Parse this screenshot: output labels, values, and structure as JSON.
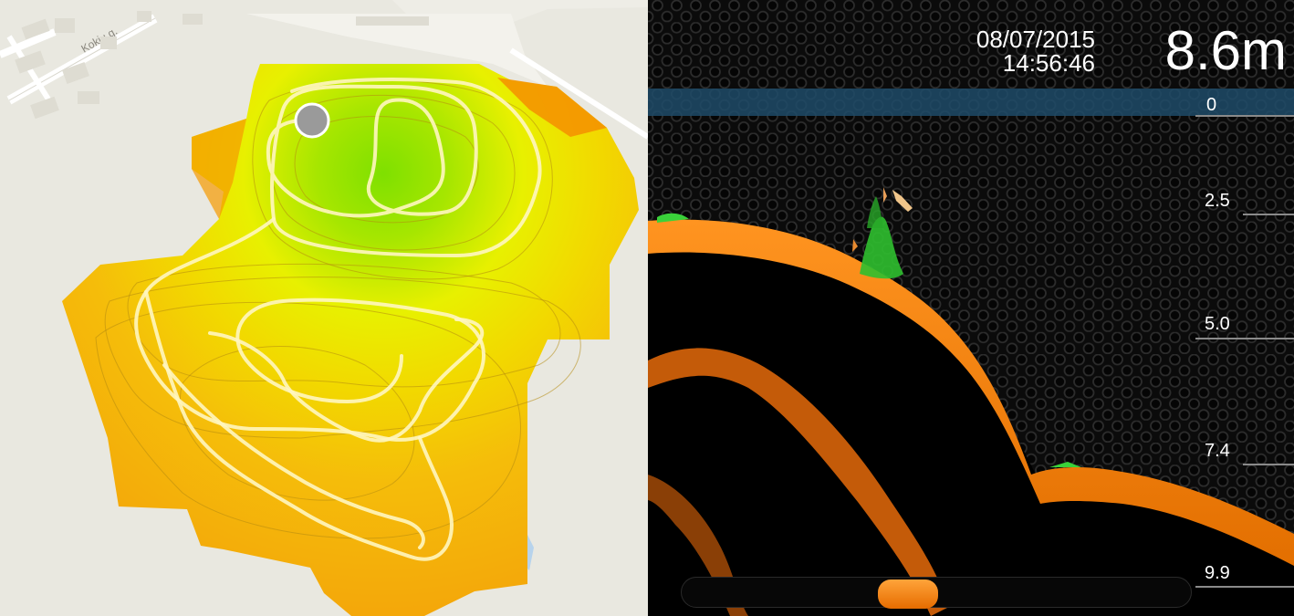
{
  "map": {
    "street_label": "Kokių g.",
    "position_marker_color": "#9a9a9a"
  },
  "sonar": {
    "date": "08/07/2015",
    "time": "14:56:46",
    "depth": "8.6m",
    "scale": [
      {
        "label": "0"
      },
      {
        "label": "2.5"
      },
      {
        "label": "5.0"
      },
      {
        "label": "7.4"
      },
      {
        "label": "9.9"
      }
    ],
    "colors": {
      "bottom": "#ff8a1a",
      "fish": "#3ad13a",
      "surface": "#1e4b69"
    },
    "history_scroll": {
      "position": 0.5
    }
  }
}
